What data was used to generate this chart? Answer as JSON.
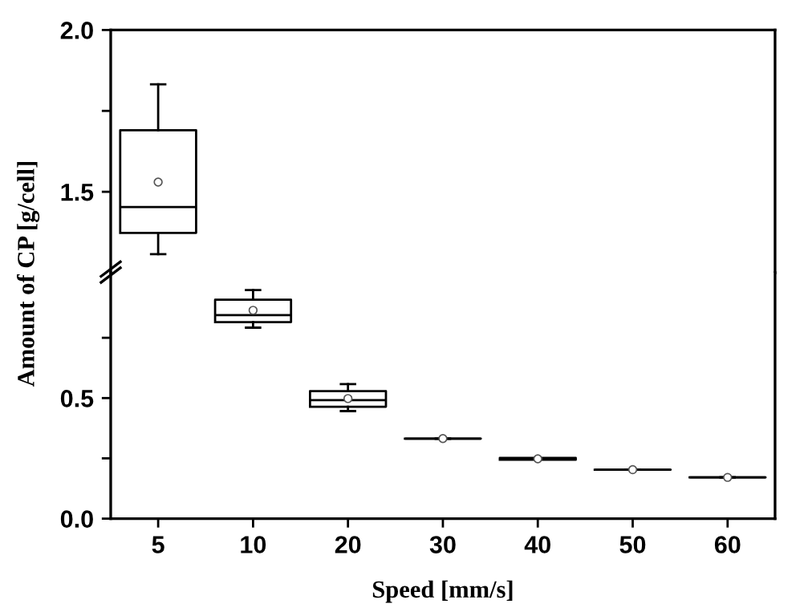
{
  "chart_data": [
    {
      "type": "box",
      "ylabel": "Amount of CP [g/cell]",
      "categories": [
        "5",
        "10",
        "20",
        "30",
        "40",
        "50",
        "60"
      ],
      "ylim": [
        1.25,
        2.0
      ],
      "yticks": [
        {
          "value": 1.5,
          "label": "1.5"
        },
        {
          "value": 1.75,
          "label": null
        },
        {
          "value": 2.0,
          "label": "2.0"
        }
      ],
      "tick_labels": "y",
      "boxes": [
        {
          "low": 1.307,
          "q1": 1.373,
          "median": 1.453,
          "q3": 1.69,
          "high": 1.832,
          "mean": 1.53
        },
        null,
        null,
        null,
        null,
        null,
        null
      ]
    },
    {
      "type": "box",
      "xlabel": "Speed [mm/s]",
      "categories": [
        "5",
        "10",
        "20",
        "30",
        "40",
        "50",
        "60"
      ],
      "ylim": [
        0.0,
        1.02
      ],
      "yticks": [
        {
          "value": 0.0,
          "label": "0.0"
        },
        {
          "value": 0.25,
          "label": null
        },
        {
          "value": 0.5,
          "label": "0.5"
        },
        {
          "value": 0.75,
          "label": null
        }
      ],
      "boxes": [
        null,
        {
          "low": 0.792,
          "q1": 0.815,
          "median": 0.844,
          "q3": 0.908,
          "high": 0.948,
          "mean": 0.864
        },
        {
          "low": 0.446,
          "q1": 0.464,
          "median": 0.491,
          "q3": 0.529,
          "high": 0.558,
          "mean": 0.498
        },
        {
          "low": 0.332,
          "q1": 0.332,
          "median": 0.332,
          "q3": 0.332,
          "high": 0.332,
          "mean": 0.332
        },
        {
          "low": 0.248,
          "q1": 0.244,
          "median": 0.248,
          "q3": 0.252,
          "high": 0.248,
          "mean": 0.248
        },
        {
          "low": 0.203,
          "q1": 0.203,
          "median": 0.203,
          "q3": 0.203,
          "high": 0.203,
          "mean": 0.203
        },
        {
          "low": 0.171,
          "q1": 0.171,
          "median": 0.171,
          "q3": 0.171,
          "high": 0.171,
          "mean": 0.171
        }
      ]
    }
  ]
}
